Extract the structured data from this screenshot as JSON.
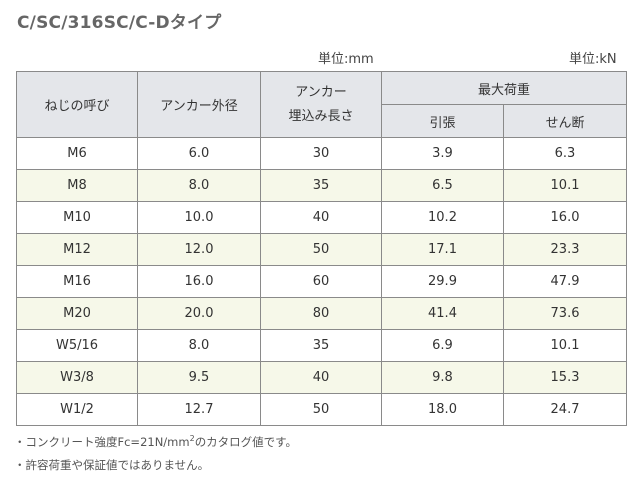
{
  "title": "C/SC/316SC/C-Dタイプ",
  "units": {
    "left": "単位:mm",
    "right": "単位:kN"
  },
  "headers": {
    "thread": "ねじの呼び",
    "anchor_od": "アンカー外径",
    "embed_line1": "アンカー",
    "embed_line2": "埋込み長さ",
    "max_load": "最大荷重",
    "tension": "引張",
    "shear": "せん断"
  },
  "rows": [
    {
      "thread": "M6",
      "od": "6.0",
      "embed": "30",
      "tension": "3.9",
      "shear": "6.3"
    },
    {
      "thread": "M8",
      "od": "8.0",
      "embed": "35",
      "tension": "6.5",
      "shear": "10.1"
    },
    {
      "thread": "M10",
      "od": "10.0",
      "embed": "40",
      "tension": "10.2",
      "shear": "16.0"
    },
    {
      "thread": "M12",
      "od": "12.0",
      "embed": "50",
      "tension": "17.1",
      "shear": "23.3"
    },
    {
      "thread": "M16",
      "od": "16.0",
      "embed": "60",
      "tension": "29.9",
      "shear": "47.9"
    },
    {
      "thread": "M20",
      "od": "20.0",
      "embed": "80",
      "tension": "41.4",
      "shear": "73.6"
    },
    {
      "thread": "W5/16",
      "od": "8.0",
      "embed": "35",
      "tension": "6.9",
      "shear": "10.1"
    },
    {
      "thread": "W3/8",
      "od": "9.5",
      "embed": "40",
      "tension": "9.8",
      "shear": "15.3"
    },
    {
      "thread": "W1/2",
      "od": "12.7",
      "embed": "50",
      "tension": "18.0",
      "shear": "24.7"
    }
  ],
  "notes": {
    "note1_before": "・コンクリート強度Fc=21N/mm",
    "note1_sup": "2",
    "note1_after": "のカタログ値です。",
    "note2": "・許容荷重や保証値ではありません。"
  },
  "colors": {
    "header_bg": "#e4e6ea",
    "alt_row_bg": "#f6f8e9",
    "border": "#8a8a8a",
    "title": "#666666"
  }
}
